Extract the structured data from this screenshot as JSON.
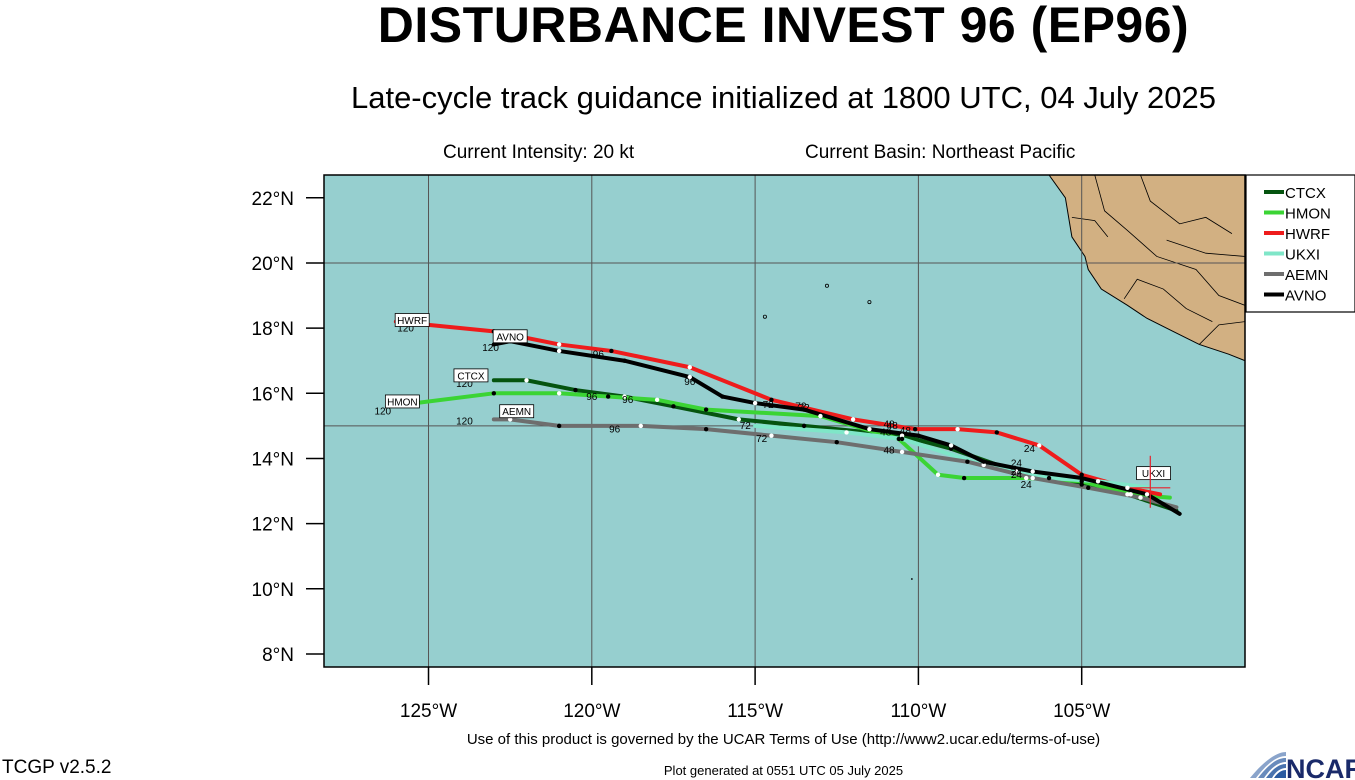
{
  "title": "DISTURBANCE INVEST 96 (EP96)",
  "subtitle": "Late-cycle track guidance initialized at 1800 UTC, 04 July 2025",
  "current_intensity": "Current Intensity: 20 kt",
  "current_basin": "Current Basin: Northeast Pacific",
  "terms": "Use of this product is governed by the UCAR Terms of Use (http://www2.ucar.edu/terms-of-use)",
  "generated": "Plot generated at 0551 UTC   05 July 2025",
  "version": "TCGP v2.5.2",
  "logo_text": "NCAR",
  "colors": {
    "ocean": "#96cfcf",
    "land": "#d2b082",
    "storm_marker": "#e8212b"
  },
  "map": {
    "lon_range": [
      -128.2,
      -100.0
    ],
    "lat_range": [
      7.6,
      22.7
    ],
    "lat_ticks": [
      {
        "value": 22,
        "label": "22°N"
      },
      {
        "value": 20,
        "label": "20°N"
      },
      {
        "value": 18,
        "label": "18°N"
      },
      {
        "value": 16,
        "label": "16°N"
      },
      {
        "value": 14,
        "label": "14°N"
      },
      {
        "value": 12,
        "label": "12°N"
      },
      {
        "value": 10,
        "label": "10°N"
      },
      {
        "value": 8,
        "label": "8°N"
      }
    ],
    "lon_ticks": [
      {
        "value": -125,
        "label": "125°W"
      },
      {
        "value": -120,
        "label": "120°W"
      },
      {
        "value": -115,
        "label": "115°W"
      },
      {
        "value": -110,
        "label": "110°W"
      },
      {
        "value": -105,
        "label": "105°W"
      }
    ],
    "grid_lons": [
      -125,
      -120,
      -115,
      -110,
      -105
    ],
    "grid_lats": [
      15,
      20
    ],
    "current_position": {
      "lon": -102.9,
      "lat": 13.1
    },
    "coastline": [
      [
        -106.0,
        22.7
      ],
      [
        -105.5,
        22.0
      ],
      [
        -105.3,
        20.8
      ],
      [
        -104.9,
        20.2
      ],
      [
        -104.8,
        19.8
      ],
      [
        -104.4,
        19.2
      ],
      [
        -103.6,
        18.7
      ],
      [
        -103.0,
        18.3
      ],
      [
        -102.2,
        17.9
      ],
      [
        -101.4,
        17.5
      ],
      [
        -100.5,
        17.2
      ],
      [
        -100.0,
        17.0
      ]
    ],
    "islands": [
      [
        -112.8,
        19.3
      ],
      [
        -114.7,
        18.35
      ],
      [
        -111.5,
        18.8
      ]
    ]
  },
  "chart_data": {
    "type": "map-tracks",
    "series": [
      {
        "name": "CTCX",
        "color": "#05540f",
        "width": 4,
        "points": [
          [
            -102.1,
            12.4
          ],
          [
            -103.6,
            12.9
          ],
          [
            -105.0,
            13.2
          ],
          [
            -107.0,
            13.6
          ],
          [
            -109.0,
            14.3
          ],
          [
            -110.5,
            14.7
          ],
          [
            -113.5,
            15.0
          ],
          [
            -115.5,
            15.2
          ],
          [
            -117.5,
            15.6
          ],
          [
            -119.0,
            15.9
          ],
          [
            -120.5,
            16.1
          ],
          [
            -122.0,
            16.4
          ],
          [
            -123.0,
            16.4
          ]
        ],
        "labels": [
          {
            "text": "24",
            "lon": -107.0,
            "lat": 13.75
          },
          {
            "text": "48",
            "lon": -111.0,
            "lat": 14.7
          },
          {
            "text": "72",
            "lon": -115.3,
            "lat": 14.9
          },
          {
            "text": "96",
            "lon": -120.0,
            "lat": 15.8
          },
          {
            "text": "120",
            "lon": -123.9,
            "lat": 16.2
          }
        ],
        "box": {
          "text": "CTCX",
          "lon": -123.7,
          "lat": 16.55
        }
      },
      {
        "name": "HMON",
        "color": "#3bd434",
        "width": 4,
        "points": [
          [
            -102.3,
            12.8
          ],
          [
            -103.5,
            12.9
          ],
          [
            -105.0,
            13.3
          ],
          [
            -106.7,
            13.4
          ],
          [
            -108.6,
            13.4
          ],
          [
            -109.4,
            13.5
          ],
          [
            -110.6,
            14.6
          ],
          [
            -113.0,
            15.3
          ],
          [
            -116.5,
            15.5
          ],
          [
            -118.0,
            15.8
          ],
          [
            -119.5,
            15.9
          ],
          [
            -121.0,
            16.0
          ],
          [
            -123.0,
            16.0
          ],
          [
            -126.2,
            15.6
          ]
        ],
        "labels": [
          {
            "text": "24",
            "lon": -106.7,
            "lat": 13.1
          },
          {
            "text": "48",
            "lon": -110.8,
            "lat": 14.9
          },
          {
            "text": "72",
            "lon": -113.5,
            "lat": 15.45
          },
          {
            "text": "96",
            "lon": -118.9,
            "lat": 15.7
          },
          {
            "text": "120",
            "lon": -126.4,
            "lat": 15.35
          }
        ],
        "box": {
          "text": "HMON",
          "lon": -125.8,
          "lat": 15.75
        }
      },
      {
        "name": "HWRF",
        "color": "#ee1c1c",
        "width": 4,
        "points": [
          [
            -102.6,
            12.9
          ],
          [
            -103.6,
            13.1
          ],
          [
            -105.0,
            13.5
          ],
          [
            -106.3,
            14.4
          ],
          [
            -107.6,
            14.8
          ],
          [
            -108.8,
            14.9
          ],
          [
            -110.1,
            14.9
          ],
          [
            -112.0,
            15.2
          ],
          [
            -114.5,
            15.8
          ],
          [
            -117.0,
            16.8
          ],
          [
            -119.4,
            17.3
          ],
          [
            -121.0,
            17.5
          ],
          [
            -123.0,
            17.9
          ],
          [
            -126.0,
            18.2
          ]
        ],
        "labels": [
          {
            "text": "24",
            "lon": -106.6,
            "lat": 14.2
          },
          {
            "text": "48",
            "lon": -110.4,
            "lat": 14.75
          },
          {
            "text": "72",
            "lon": -113.6,
            "lat": 15.5
          },
          {
            "text": "96",
            "lon": -119.8,
            "lat": 17.1
          },
          {
            "text": "120",
            "lon": -125.7,
            "lat": 17.9
          }
        ],
        "box": {
          "text": "HWRF",
          "lon": -125.5,
          "lat": 18.25
        }
      },
      {
        "name": "UKXI",
        "color": "#7fe6c8",
        "width": 4,
        "points": [
          [
            -102.9,
            13.1
          ],
          [
            -104.5,
            13.3
          ],
          [
            -106.0,
            13.4
          ],
          [
            -108.0,
            13.8
          ],
          [
            -110.5,
            14.6
          ],
          [
            -112.2,
            14.8
          ],
          [
            -115.0,
            15.0
          ]
        ],
        "labels": [],
        "box": {
          "text": "UKXI",
          "lon": -102.8,
          "lat": 13.55
        }
      },
      {
        "name": "AEMN",
        "color": "#6e6e6e",
        "width": 4,
        "points": [
          [
            -102.1,
            12.5
          ],
          [
            -103.2,
            12.8
          ],
          [
            -104.8,
            13.1
          ],
          [
            -106.5,
            13.4
          ],
          [
            -108.5,
            13.9
          ],
          [
            -110.5,
            14.2
          ],
          [
            -112.5,
            14.5
          ],
          [
            -114.5,
            14.7
          ],
          [
            -116.5,
            14.9
          ],
          [
            -118.5,
            15.0
          ],
          [
            -121.0,
            15.0
          ],
          [
            -122.5,
            15.2
          ],
          [
            -123.0,
            15.2
          ]
        ],
        "labels": [
          {
            "text": "24",
            "lon": -107.0,
            "lat": 13.5
          },
          {
            "text": "48",
            "lon": -110.9,
            "lat": 14.15
          },
          {
            "text": "72",
            "lon": -114.8,
            "lat": 14.5
          },
          {
            "text": "96",
            "lon": -119.3,
            "lat": 14.8
          },
          {
            "text": "120",
            "lon": -123.9,
            "lat": 15.05
          }
        ],
        "box": {
          "text": "AEMN",
          "lon": -122.3,
          "lat": 15.45
        }
      },
      {
        "name": "AVNO",
        "color": "#000000",
        "width": 4,
        "points": [
          [
            -102.0,
            12.3
          ],
          [
            -103.0,
            12.9
          ],
          [
            -105.0,
            13.4
          ],
          [
            -106.5,
            13.6
          ],
          [
            -108.0,
            13.9
          ],
          [
            -109.0,
            14.4
          ],
          [
            -110.0,
            14.7
          ],
          [
            -111.5,
            14.9
          ],
          [
            -113.5,
            15.5
          ],
          [
            -115.0,
            15.7
          ],
          [
            -116.0,
            15.9
          ],
          [
            -117.0,
            16.5
          ],
          [
            -119.0,
            17.0
          ],
          [
            -121.0,
            17.3
          ],
          [
            -122.5,
            17.6
          ],
          [
            -123.0,
            17.5
          ]
        ],
        "labels": [
          {
            "text": "24",
            "lon": -107.0,
            "lat": 13.4
          },
          {
            "text": "48",
            "lon": -110.9,
            "lat": 14.95
          },
          {
            "text": "72",
            "lon": -114.6,
            "lat": 15.55
          },
          {
            "text": "96",
            "lon": -117.0,
            "lat": 16.25
          },
          {
            "text": "120",
            "lon": -123.1,
            "lat": 17.3
          }
        ],
        "box": {
          "text": "AVNO",
          "lon": -122.5,
          "lat": 17.75
        }
      }
    ],
    "legend": [
      "CTCX",
      "HMON",
      "HWRF",
      "UKXI",
      "AEMN",
      "AVNO"
    ],
    "legend_position": "right"
  }
}
